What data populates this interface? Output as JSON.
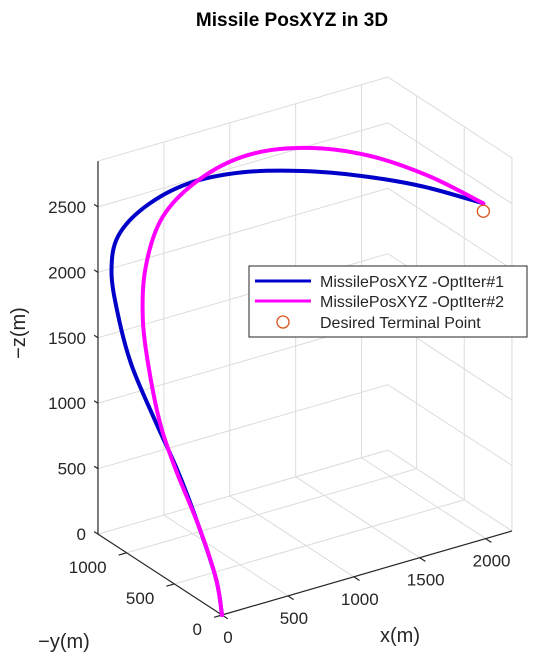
{
  "chart_data": {
    "type": "line",
    "title": "Missile PosXYZ in 3D",
    "xlabel": "x(m)",
    "ylabel": "−y(m)",
    "zlabel": "−z(m)",
    "x_ticks": [
      "0",
      "500",
      "1000",
      "1500",
      "2000"
    ],
    "y_ticks": [
      "0",
      "500",
      "1000"
    ],
    "z_ticks": [
      "0",
      "500",
      "1000",
      "1500",
      "2000",
      "2500"
    ],
    "xlim": [
      0,
      2200
    ],
    "ylim": [
      0,
      1300
    ],
    "zlim": [
      0,
      2850
    ],
    "grid": true,
    "legend_position": "right",
    "series": [
      {
        "name": "MissilePosXYZ -OptIter#1",
        "color": "#0000c8",
        "x": [
          0,
          100,
          150,
          170,
          130,
          70,
          40,
          30,
          80,
          250,
          500,
          800,
          1150,
          1500,
          1850,
          2200
        ],
        "y": [
          0,
          200,
          450,
          700,
          900,
          1050,
          1150,
          1200,
          1200,
          1150,
          1050,
          900,
          750,
          600,
          450,
          300
        ],
        "z": [
          0,
          150,
          420,
          720,
          1050,
          1400,
          1750,
          2050,
          2300,
          2500,
          2650,
          2720,
          2700,
          2630,
          2520,
          2360
        ]
      },
      {
        "name": "MissilePosXYZ -OptIter#2",
        "color": "#ff00ff",
        "x": [
          0,
          100,
          150,
          160,
          150,
          140,
          160,
          230,
          380,
          620,
          920,
          1250,
          1580,
          1900,
          2200
        ],
        "y": [
          0,
          200,
          450,
          700,
          850,
          950,
          1050,
          1120,
          1150,
          1100,
          1000,
          850,
          650,
          470,
          300
        ],
        "z": [
          0,
          150,
          420,
          720,
          1000,
          1350,
          1700,
          2050,
          2380,
          2620,
          2770,
          2800,
          2740,
          2580,
          2360
        ]
      }
    ],
    "markers": [
      {
        "name": "Desired Terminal Point",
        "color": "#d95319",
        "shape": "circle",
        "x": 2200,
        "y": 300,
        "z": 2300
      }
    ]
  }
}
